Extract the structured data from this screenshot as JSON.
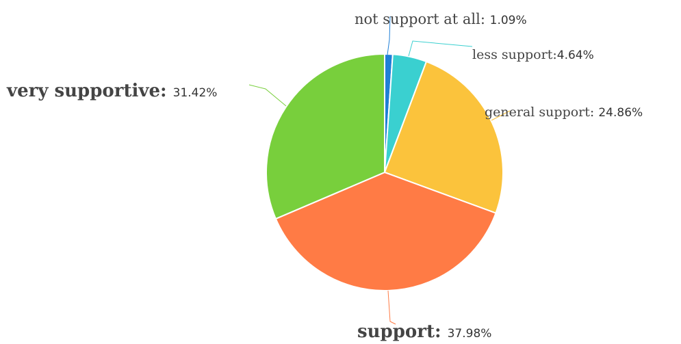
{
  "chart_data": {
    "type": "pie",
    "title": "",
    "start_angle_deg": 0,
    "direction": "clockwise",
    "slices": [
      {
        "name": "not support at all",
        "value": 1.09,
        "percent_label": "1.09%",
        "separator": ": ",
        "color": "#1f7fd6",
        "label_bold": false
      },
      {
        "name": "less support",
        "value": 4.64,
        "percent_label": "4.64%",
        "separator": ":",
        "color": "#3ad0d0",
        "label_bold": false
      },
      {
        "name": "general support",
        "value": 24.86,
        "percent_label": "24.86%",
        "separator": ": ",
        "color": "#fbc33c",
        "label_bold": false
      },
      {
        "name": "support",
        "value": 37.98,
        "percent_label": "37.98%",
        "separator": ": ",
        "color": "#ff7b45",
        "label_bold": true
      },
      {
        "name": "very supportive",
        "value": 31.42,
        "percent_label": "31.42%",
        "separator": ": ",
        "color": "#78cf3c",
        "label_bold": true
      }
    ]
  }
}
